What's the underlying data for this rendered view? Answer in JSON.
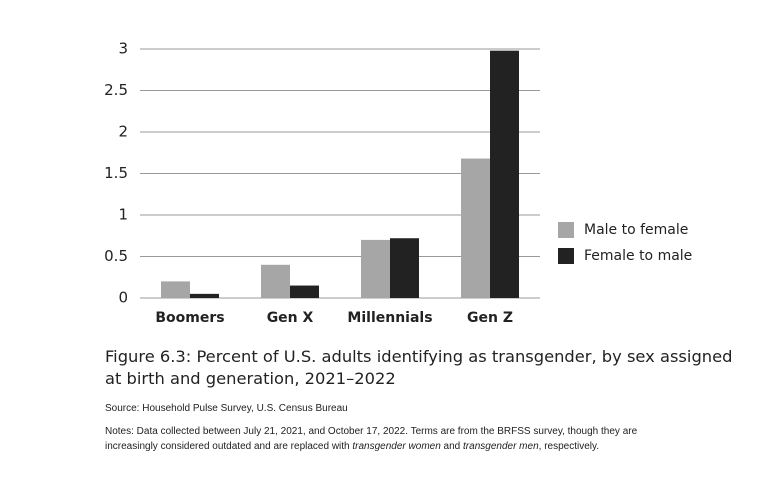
{
  "chart_data": {
    "type": "bar",
    "categories": [
      "Boomers",
      "Gen X",
      "Millennials",
      "Gen Z"
    ],
    "series": [
      {
        "name": "Male to female",
        "color": "#a6a6a6",
        "values": [
          0.2,
          0.4,
          0.7,
          1.68
        ]
      },
      {
        "name": "Female to male",
        "color": "#222222",
        "values": [
          0.05,
          0.15,
          0.72,
          2.98
        ]
      }
    ],
    "ylim": [
      0,
      3
    ],
    "yticks": [
      0,
      0.5,
      1,
      1.5,
      2,
      2.5,
      3
    ],
    "grid": true,
    "legend": "right"
  },
  "caption": {
    "title_lines": [
      "Figure 6.3: Percent of U.S. adults identifying as transgender, by sex assigned",
      "at birth and generation, 2021–2022"
    ],
    "source": "Source: Household Pulse Survey, U.S. Census Bureau",
    "notes_lines": [
      [
        {
          "text": "Notes: Data collected between July 21, 2021, and October 17, 2022. Terms are from the BRFSS survey, though they are",
          "italic": false
        }
      ],
      [
        {
          "text": "increasingly considered outdated and are replaced with ",
          "italic": false
        },
        {
          "text": "transgender women",
          "italic": true
        },
        {
          "text": " and ",
          "italic": false
        },
        {
          "text": "transgender men",
          "italic": true
        },
        {
          "text": ", respectively.",
          "italic": false
        }
      ]
    ]
  }
}
